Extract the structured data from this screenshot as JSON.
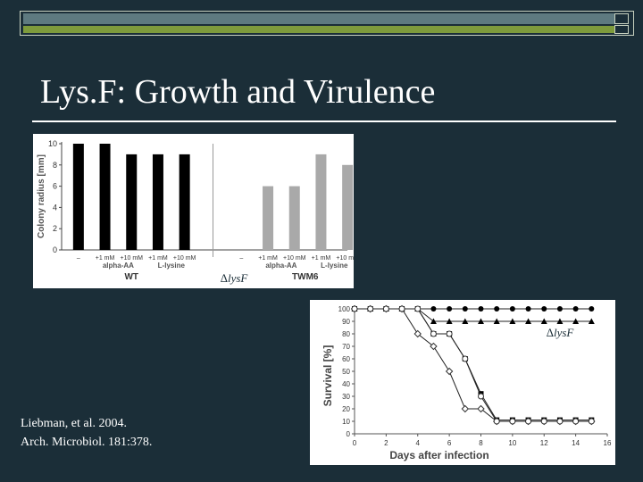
{
  "slide": {
    "title": "Lys.F: Growth and Virulence",
    "citation_line1": "Liebman, et al. 2004.",
    "citation_line2": "Arch. Microbiol. 181:378.",
    "background_color": "#1b2e38",
    "text_color": "#ffffff"
  },
  "chart_data": [
    {
      "type": "bar",
      "ylabel": "Colony radius [mm]",
      "ylim": [
        0,
        10
      ],
      "yticks": [
        0,
        2,
        4,
        6,
        8,
        10
      ],
      "categories": [
        "–",
        "+1 mM",
        "+10 mM",
        "+1 mM",
        "+10 mM",
        "–",
        "+1 mM",
        "+10 mM",
        "+1 mM",
        "+10 mM"
      ],
      "values": [
        10,
        10,
        9,
        9,
        9,
        0,
        6,
        6,
        9,
        8
      ],
      "bar_colors": [
        "#000000",
        "#000000",
        "#000000",
        "#000000",
        "#000000",
        "#a9a9a9",
        "#a9a9a9",
        "#a9a9a9",
        "#a9a9a9",
        "#a9a9a9"
      ],
      "group_labels": [
        "alpha-AA",
        "L-lysine",
        "alpha-AA",
        "L-lysine"
      ],
      "strain_labels": [
        "WT",
        "TWM6"
      ],
      "overlay_label": "∆lysF"
    },
    {
      "type": "line",
      "xlabel": "Days after infection",
      "ylabel": "Survival [%]",
      "xlim": [
        0,
        16
      ],
      "ylim": [
        0,
        100
      ],
      "xticks": [
        0,
        2,
        4,
        6,
        8,
        10,
        12,
        14,
        16
      ],
      "yticks": [
        0,
        10,
        20,
        30,
        40,
        50,
        60,
        70,
        80,
        90,
        100
      ],
      "overlay_label": "∆lysF",
      "series": [
        {
          "marker": "filled-circle",
          "x": [
            0,
            1,
            2,
            3,
            4,
            5,
            6,
            7,
            8,
            9,
            10,
            11,
            12,
            13,
            14,
            15
          ],
          "y": [
            100,
            100,
            100,
            100,
            100,
            100,
            100,
            100,
            100,
            100,
            100,
            100,
            100,
            100,
            100,
            100
          ]
        },
        {
          "marker": "filled-triangle",
          "x": [
            0,
            1,
            2,
            3,
            4,
            5,
            6,
            7,
            8,
            9,
            10,
            11,
            12,
            13,
            14,
            15
          ],
          "y": [
            100,
            100,
            100,
            100,
            100,
            90,
            90,
            90,
            90,
            90,
            90,
            90,
            90,
            90,
            90,
            90
          ]
        },
        {
          "marker": "filled-square",
          "x": [
            0,
            1,
            2,
            3,
            4,
            5,
            6,
            7,
            8,
            9,
            10,
            11,
            12,
            13,
            14,
            15
          ],
          "y": [
            100,
            100,
            100,
            100,
            100,
            80,
            80,
            60,
            32,
            11,
            11,
            11,
            11,
            11,
            11,
            11
          ]
        },
        {
          "marker": "open-diamond",
          "x": [
            0,
            1,
            2,
            3,
            4,
            5,
            6,
            7,
            8,
            9,
            10,
            11,
            12,
            13,
            14,
            15
          ],
          "y": [
            100,
            100,
            100,
            100,
            80,
            70,
            50,
            20,
            20,
            10,
            10,
            10,
            10,
            10,
            10,
            10
          ]
        },
        {
          "marker": "open-circle",
          "x": [
            0,
            1,
            2,
            3,
            4,
            5,
            6,
            7,
            8,
            9,
            10,
            11,
            12,
            13,
            14,
            15
          ],
          "y": [
            100,
            100,
            100,
            100,
            100,
            80,
            80,
            60,
            30,
            10,
            10,
            10,
            10,
            10,
            10,
            10
          ]
        }
      ]
    }
  ]
}
